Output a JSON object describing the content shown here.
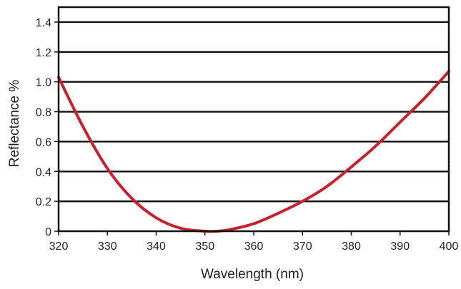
{
  "chart_data": {
    "type": "line",
    "title": "",
    "xlabel": "Wavelength (nm)",
    "ylabel": "Reflectance %",
    "xlim": [
      320,
      400
    ],
    "ylim": [
      0,
      1.5
    ],
    "x_ticks": [
      "320",
      "330",
      "340",
      "350",
      "360",
      "370",
      "380",
      "390",
      "400"
    ],
    "y_ticks": [
      "0",
      "0.2",
      "0.4",
      "0.6",
      "0.8",
      "1.0",
      "1.2",
      "1.4"
    ],
    "grid": "horizontal",
    "series": [
      {
        "color": "#c8202f",
        "x": [
          320,
          325,
          330,
          335,
          340,
          345,
          350,
          352.5,
          355,
          360,
          365,
          370,
          375,
          380,
          385,
          390,
          395,
          400
        ],
        "y": [
          1.03,
          0.7,
          0.42,
          0.22,
          0.09,
          0.02,
          0.0,
          0.0,
          0.01,
          0.05,
          0.12,
          0.2,
          0.3,
          0.43,
          0.57,
          0.73,
          0.89,
          1.07
        ]
      }
    ]
  }
}
